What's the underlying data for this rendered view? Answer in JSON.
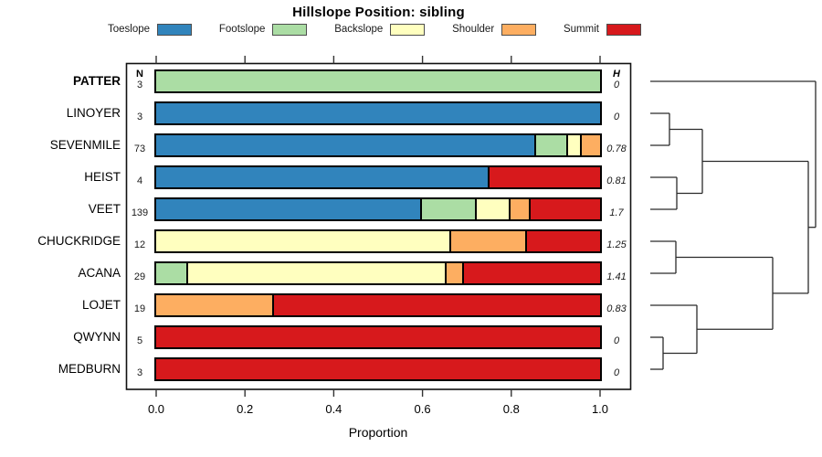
{
  "title": "Hillslope Position: sibling",
  "legend": {
    "items": [
      {
        "label": "Toeslope",
        "color": "#3184BC"
      },
      {
        "label": "Footslope",
        "color": "#ABDDA4"
      },
      {
        "label": "Backslope",
        "color": "#FFFFBF"
      },
      {
        "label": "Shoulder",
        "color": "#FDAE61"
      },
      {
        "label": "Summit",
        "color": "#D7191C"
      }
    ]
  },
  "table": {
    "n_header": "N",
    "h_header": "H"
  },
  "axis": {
    "label": "Proportion",
    "ticks": [
      "0.0",
      "0.2",
      "0.4",
      "0.6",
      "0.8",
      "1.0"
    ]
  },
  "chart_data": {
    "type": "bar",
    "variant": "horizontal-stacked-proportion-with-dendrogram",
    "title": "Hillslope Position: sibling",
    "xlabel": "Proportion",
    "xlim": [
      0,
      1
    ],
    "legend_position": "top",
    "categories": [
      "PATTER",
      "LINOYER",
      "SEVENMILE",
      "HEIST",
      "VEET",
      "CHUCKRIDGE",
      "ACANA",
      "LOJET",
      "QWYNN",
      "MEDBURN"
    ],
    "bold_categories": [
      "PATTER"
    ],
    "n": [
      3,
      3,
      73,
      4,
      139,
      12,
      29,
      19,
      5,
      3
    ],
    "shannon_h": [
      "0",
      "0",
      "0.78",
      "0.81",
      "1.7",
      "1.25",
      "1.41",
      "0.83",
      "0",
      "0"
    ],
    "series": [
      {
        "name": "Toeslope",
        "color": "#3184BC",
        "values": [
          0,
          1,
          0.863,
          0.75,
          0.604,
          0,
          0,
          0,
          0,
          0
        ]
      },
      {
        "name": "Footslope",
        "color": "#ABDDA4",
        "values": [
          1,
          0,
          0.0685,
          0,
          0.1223,
          0,
          0.069,
          0,
          0,
          0
        ]
      },
      {
        "name": "Backslope",
        "color": "#FFFFBF",
        "values": [
          0,
          0,
          0.0274,
          0,
          0.0719,
          0.6667,
          0.5862,
          0,
          0,
          0
        ]
      },
      {
        "name": "Shoulder",
        "color": "#FDAE61",
        "values": [
          0,
          0,
          0.0411,
          0,
          0.0432,
          0.1667,
          0.0345,
          0.2632,
          0,
          0
        ]
      },
      {
        "name": "Summit",
        "color": "#D7191C",
        "values": [
          0,
          0,
          0,
          0.25,
          0.1583,
          0.1667,
          0.3103,
          0.7368,
          1,
          1
        ]
      }
    ]
  },
  "dendrogram": {
    "leaf_x": 712,
    "merges": [
      {
        "id": "n1",
        "a": "LINOYER",
        "b": "SEVENMILE",
        "x": 733
      },
      {
        "id": "n2",
        "a": "HEIST",
        "b": "VEET",
        "x": 741
      },
      {
        "id": "n3",
        "a": "n1",
        "b": "n2",
        "x": 769
      },
      {
        "id": "n4",
        "a": "CHUCKRIDGE",
        "b": "ACANA",
        "x": 740
      },
      {
        "id": "n5",
        "a": "QWYNN",
        "b": "MEDBURN",
        "x": 726
      },
      {
        "id": "n6",
        "a": "LOJET",
        "b": "n5",
        "x": 763
      },
      {
        "id": "n7",
        "a": "n4",
        "b": "n6",
        "x": 846
      },
      {
        "id": "n8",
        "a": "n3",
        "b": "n7",
        "x": 885
      },
      {
        "id": "n9",
        "a": "PATTER",
        "b": "n8",
        "x": 893
      }
    ]
  }
}
